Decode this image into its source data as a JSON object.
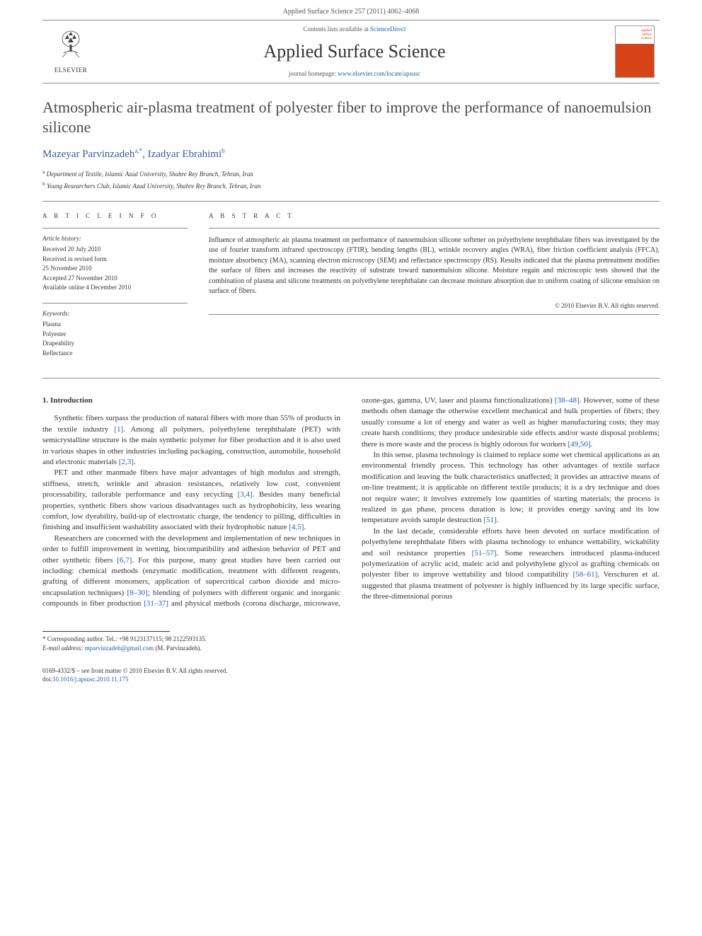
{
  "header": {
    "citation": "Applied Surface Science 257 (2011) 4062–4068"
  },
  "banner": {
    "publisher_name": "ELSEVIER",
    "contents_prefix": "Contents lists available at ",
    "contents_link": "ScienceDirect",
    "journal_name": "Applied Surface Science",
    "homepage_prefix": "journal homepage: ",
    "homepage_url": "www.elsevier.com/locate/apsusc"
  },
  "article": {
    "title": "Atmospheric air-plasma treatment of polyester fiber to improve the performance of nanoemulsion silicone",
    "authors_html": "Mazeyar Parvinzadeh",
    "author1": "Mazeyar Parvinzadeh",
    "author1_sup": "a,*",
    "author_sep": ", ",
    "author2": "Izadyar Ebrahimi",
    "author2_sup": "b",
    "affiliations": {
      "a_sup": "a",
      "a_text": " Department of Textile, Islamic Azad University, Shahre Rey Branch, Tehran, Iran",
      "b_sup": "b",
      "b_text": " Young Researchers Club, Islamic Azad University, Shahre Rey Branch, Tehran, Iran"
    }
  },
  "info": {
    "heading": "A R T I C L E   I N F O",
    "history_label": "Article history:",
    "history": [
      "Received 20 July 2010",
      "Received in revised form",
      "25 November 2010",
      "Accepted 27 November 2010",
      "Available online 4 December 2010"
    ],
    "keywords_label": "Keywords:",
    "keywords": [
      "Plasma",
      "Polyester",
      "Drapeability",
      "Reflectance"
    ]
  },
  "abstract": {
    "heading": "A B S T R A C T",
    "body": "Influence of atmospheric air plasma treatment on performance of nanoemulsion silicone softener on polyethylene terephthalate fibers was investigated by the use of fourier transform infrared spectroscopy (FTIR), bending lengths (BL), wrinkle recovery angles (WRA), fiber friction coefficient analysis (FFCA), moisture absorbency (MA), scanning electron microscopy (SEM) and reflectance spectroscopy (RS). Results indicated that the plasma pretreatment modifies the surface of fibers and increases the reactivity of substrate toward nanoemulsion silicone. Moisture regain and microscopic tests showed that the combination of plasma and silicone treatments on polyethylene terephthalate can decrease moisture absorption due to uniform coating of silicone emulsion on surface of fibers.",
    "copyright": "© 2010 Elsevier B.V. All rights reserved."
  },
  "body": {
    "section1_heading": "1. Introduction",
    "p1": "Synthetic fibers surpass the production of natural fibers with more than 55% of products in the textile industry [1]. Among all polymers, polyethylene terephthalate (PET) with semicrystalline structure is the main synthetic polymer for fiber production and it is also used in various shapes in other industries including packaging, construction, automobile, household and electronic materials [2,3].",
    "p2": "PET and other manmade fibers have major advantages of high modulus and strength, stiffness, stretch, wrinkle and abrasion resistances, relatively low cost, convenient processability, tailorable performance and easy recycling [3,4]. Besides many beneficial properties, synthetic fibers show various disadvantages such as hydrophobicity, less wearing comfort, low dyeability, build-up of electrostatic charge, the tendency to pilling, difficulties in finishing and insufficient washability associated with their hydrophobic nature [4,5].",
    "p3": "Researchers are concerned with the development and implementation of new techniques in order to fulfill improvement in wetting, biocompatibility and adhesion behavior of PET and other synthetic fibers [6,7]. For this purpose, many great studies have been carried out including: chemical methods (enzymatic modification, treatment with different reagents, grafting of different monomers, application of supercritical carbon dioxide and micro-encapsulation techniques) [8–30]; blending of polymers with different organic and inorganic compounds in fiber production [31–37] and physical methods (corona discharge, microwave, ozone-gas, gamma, UV, laser and plasma functionalizations) [38–48]. However, some of these methods often damage the otherwise excellent mechanical and bulk properties of fibers; they usually consume a lot of energy and water as well as higher manufacturing costs; they may create harsh conditions; they produce undesirable side effects and/or waste disposal problems; there is more waste and the process is highly odorous for workers [49,50].",
    "p4": "In this sense, plasma technology is claimed to replace some wet chemical applications as an environmental friendly process. This technology has other advantages of textile surface modification and leaving the bulk characteristics unaffected; it provides an attractive means of on-line treatment; it is applicable on different textile products; it is a dry technique and does not require water; it involves extremely low quantities of starting materials; the process is realized in gas phase, process duration is low; it provides energy saving and its low temperature avoids sample destruction [51].",
    "p5": "In the last decade, considerable efforts have been devoted on surface modification of polyethylene terephthalate fibers with plasma technology to enhance wettability, wickability and soil resistance properties [51–57]. Some researchers introduced plasma-induced polymerization of acrylic acid, maleic acid and polyethylene glycol as grafting chemicals on polyester fiber to improve wettability and blood compatibility [58–61]. Verschuren et al. suggested that plasma treatment of polyester is highly influenced by its large specific surface, the three-dimensional porous"
  },
  "footer": {
    "corr_label": "* Corresponding author. Tel.: +98 9123137115; 98 2122593135.",
    "email_label": "E-mail address: ",
    "email": "mparvinzadeh@gmail.com",
    "email_suffix": " (M. Parvinzadeh).",
    "front_matter": "0169-4332/$ – see front matter © 2010 Elsevier B.V. All rights reserved.",
    "doi_prefix": "doi:",
    "doi": "10.1016/j.apsusc.2010.11.175"
  },
  "colors": {
    "link": "#1a5fb4",
    "accent": "#d84315"
  }
}
